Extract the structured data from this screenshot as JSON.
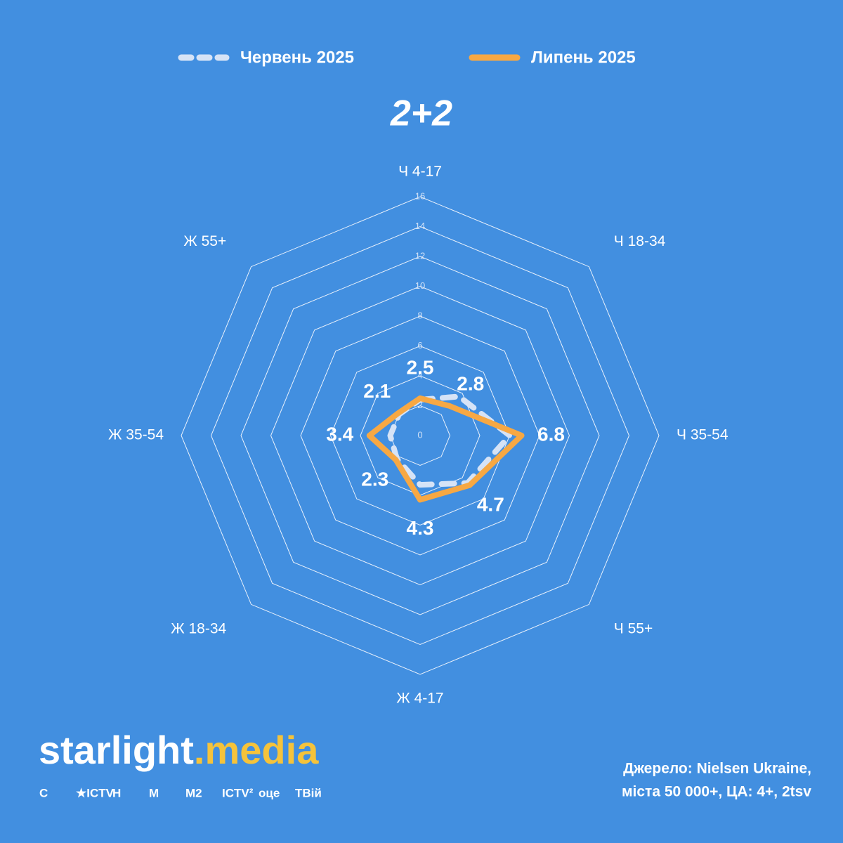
{
  "chart_data": {
    "type": "radar",
    "logo": "2+2",
    "categories": [
      "Ч 4-17",
      "Ч 18-34",
      "Ч 35-54",
      "Ч 55+",
      "Ж 4-17",
      "Ж 18-34",
      "Ж 35-54",
      "Ж 55+"
    ],
    "rlim": [
      0,
      16
    ],
    "rticks": [
      0,
      2,
      4,
      6,
      8,
      10,
      12,
      14,
      16
    ],
    "grid": true,
    "legend": "top",
    "series": [
      {
        "name": "Червень 2025",
        "color": "#d6e3f6",
        "dashed": true,
        "values": [
          2.4,
          3.7,
          6.0,
          4.5,
          3.3,
          2.2,
          2.0,
          2.0
        ]
      },
      {
        "name": "Липень 2025",
        "color": "#f7a843",
        "dashed": false,
        "values": [
          2.5,
          2.8,
          6.8,
          4.7,
          4.3,
          2.3,
          3.4,
          2.1
        ],
        "show_labels": true
      }
    ]
  },
  "footer": {
    "brand_left": "starlight",
    "brand_dot": ".",
    "brand_right": "media",
    "channels": [
      "C",
      "★ICTV",
      "H",
      "M",
      "M2",
      "ICTV²",
      "оце",
      "ТВій"
    ],
    "source_line1": "Джерело: Nielsen Ukraine,",
    "source_line2": "міста 50 000+, ЦА: 4+, 2tsv"
  }
}
